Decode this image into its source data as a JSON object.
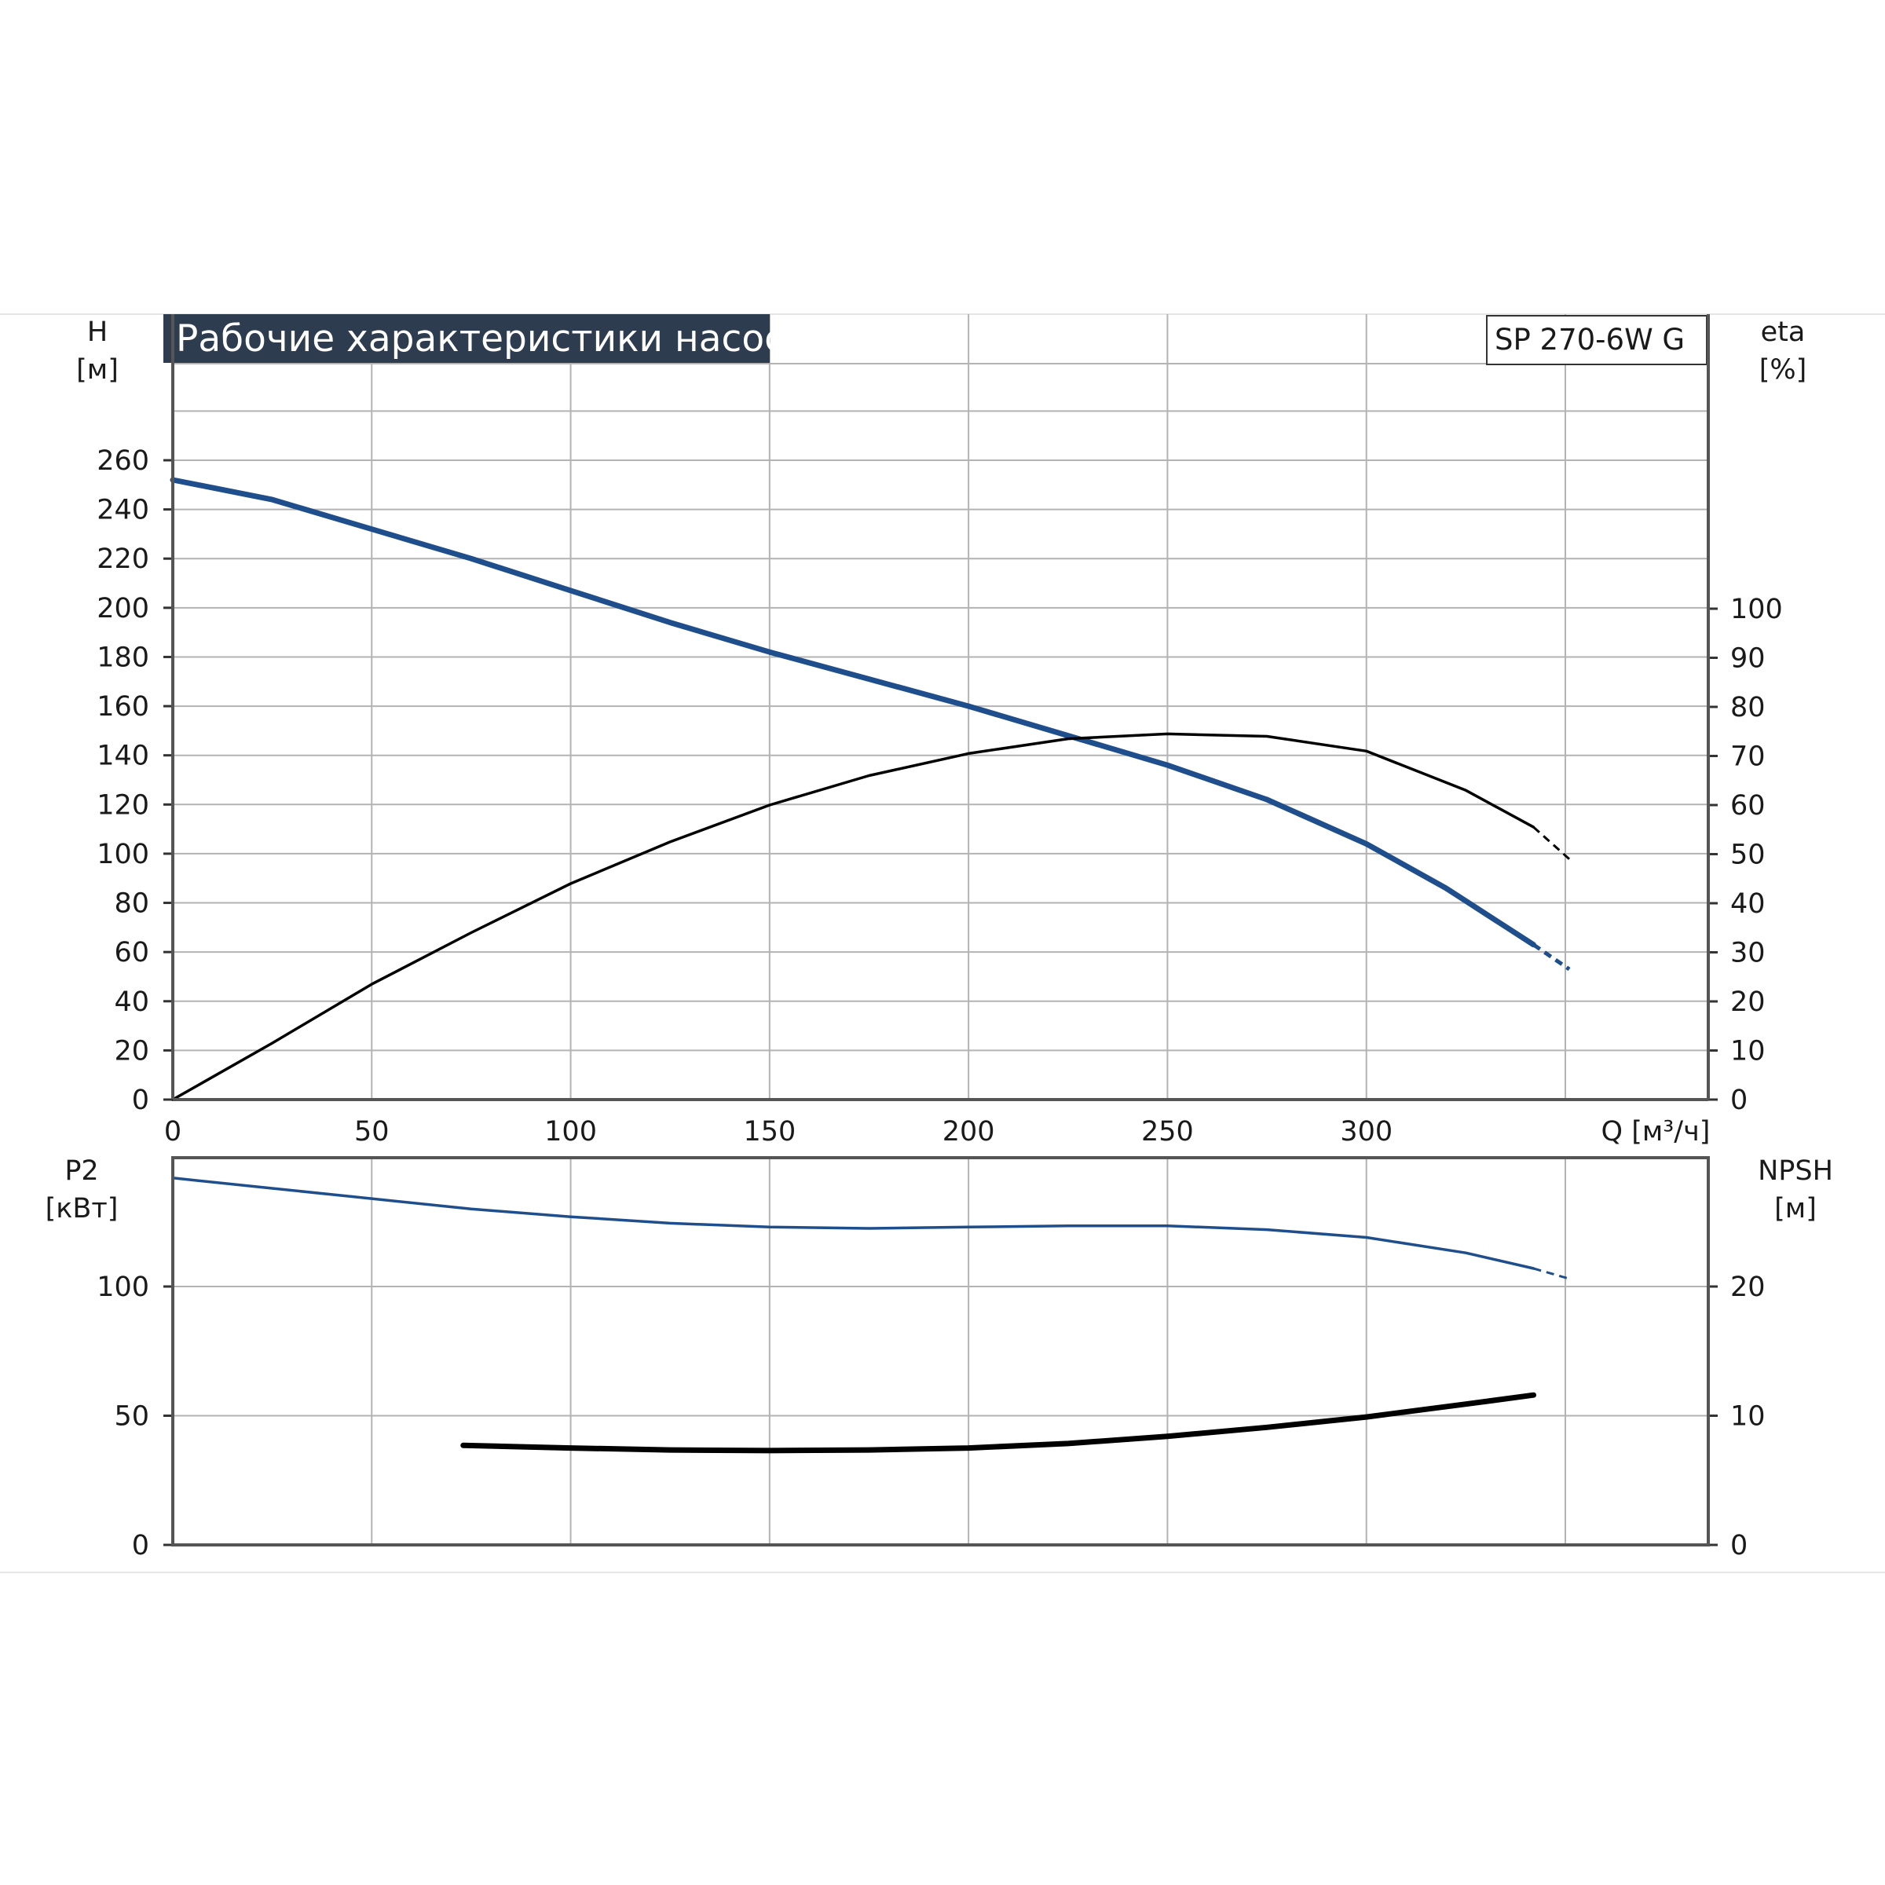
{
  "chart_data": [
    {
      "type": "line",
      "title": "Рабочие характеристики насоса",
      "model": "SP 270-6W G",
      "x_axis": {
        "label": "Q [м³/ч]",
        "ticks": [
          0,
          50,
          100,
          150,
          200,
          250,
          300
        ],
        "range": [
          0,
          385
        ],
        "grid": [
          50,
          100,
          150,
          200,
          250,
          300,
          350
        ]
      },
      "y_left": {
        "label": "H",
        "unit": "[м]",
        "ticks": [
          0,
          20,
          40,
          60,
          80,
          100,
          120,
          140,
          160,
          180,
          200,
          220,
          240,
          260
        ],
        "range": [
          0,
          300
        ]
      },
      "y_right": {
        "label": "eta",
        "unit": "[%]",
        "ticks": [
          0,
          10,
          20,
          30,
          40,
          50,
          60,
          70,
          80,
          90,
          100
        ],
        "range": [
          0,
          150
        ]
      },
      "grid": true,
      "series": [
        {
          "axis": "left",
          "color": "#1f4e8c",
          "role": "head",
          "x": [
            0,
            25,
            50,
            75,
            100,
            125,
            150,
            175,
            200,
            225,
            250,
            275,
            300,
            320,
            342
          ],
          "y": [
            252,
            244,
            232,
            220,
            207,
            194,
            182,
            171,
            160,
            148,
            136,
            122,
            104,
            86,
            63
          ],
          "dashed_x": [
            342,
            351
          ],
          "dashed_y": [
            63,
            53
          ]
        },
        {
          "axis": "right",
          "color": "#000000",
          "role": "efficiency",
          "x": [
            0,
            25,
            50,
            75,
            100,
            125,
            150,
            175,
            200,
            225,
            250,
            275,
            300,
            325,
            342
          ],
          "y": [
            0,
            11.5,
            23.5,
            34,
            44,
            52.5,
            60,
            66,
            70.5,
            73.5,
            74.5,
            74,
            71,
            63,
            55.5
          ],
          "dashed_x": [
            342,
            351
          ],
          "dashed_y": [
            55.5,
            49
          ]
        }
      ]
    },
    {
      "type": "line",
      "x_axis": {
        "range": [
          0,
          385
        ],
        "grid": [
          50,
          100,
          150,
          200,
          250,
          300,
          350
        ]
      },
      "y_left": {
        "label": "P2",
        "unit": "[кВт]",
        "ticks": [
          0,
          50,
          100
        ],
        "range": [
          0,
          150
        ]
      },
      "y_right": {
        "label": "NPSH",
        "unit": "[м]",
        "ticks": [
          0,
          10,
          20
        ],
        "range": [
          0,
          30
        ]
      },
      "grid": true,
      "series": [
        {
          "axis": "left",
          "color": "#1f4e8c",
          "role": "power",
          "x": [
            0,
            25,
            50,
            75,
            100,
            125,
            150,
            175,
            200,
            225,
            250,
            275,
            300,
            325,
            342
          ],
          "y": [
            142,
            138,
            134,
            130,
            127,
            124.5,
            123,
            122.5,
            123,
            123.5,
            123.5,
            122,
            119,
            113,
            107
          ],
          "dashed_x": [
            342,
            351
          ],
          "dashed_y": [
            107,
            103
          ]
        },
        {
          "axis": "right",
          "color": "#000000",
          "role": "npsh",
          "x": [
            73,
            100,
            125,
            150,
            175,
            200,
            225,
            250,
            275,
            300,
            325,
            342
          ],
          "y": [
            7.7,
            7.5,
            7.35,
            7.3,
            7.35,
            7.5,
            7.85,
            8.4,
            9.1,
            9.9,
            10.9,
            11.6
          ]
        }
      ]
    }
  ]
}
